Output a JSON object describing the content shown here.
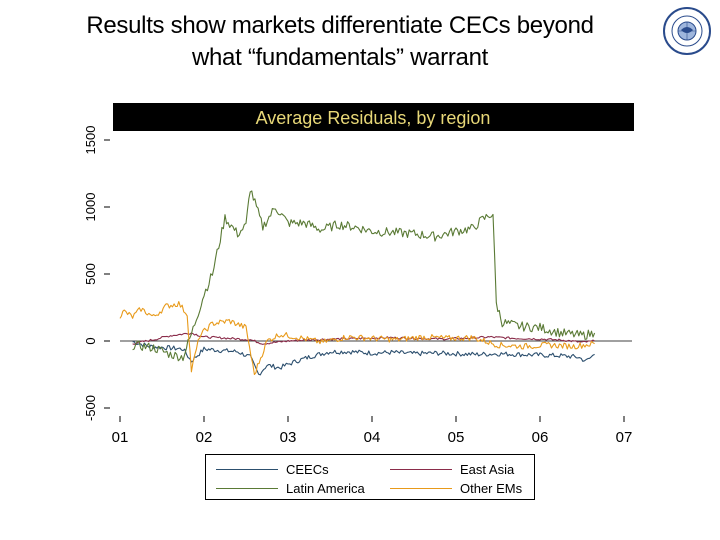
{
  "slide": {
    "title_line1": "Results show markets differentiate CECs beyond",
    "title_line2": "what “fundamentals” warrant"
  },
  "logo": {
    "name": "imf-seal",
    "text": "INTERNATIONAL MONETARY FUND"
  },
  "chart_data": {
    "type": "line",
    "title": "Average Residuals, by region",
    "xlabel": "",
    "ylabel": "",
    "x_ticks": [
      "01",
      "02",
      "03",
      "04",
      "05",
      "06",
      "07"
    ],
    "x_tick_values": [
      2001,
      2002,
      2003,
      2004,
      2005,
      2006,
      2007
    ],
    "xlim": [
      2001,
      2007
    ],
    "y_ticks": [
      "-500",
      "0",
      "500",
      "1000",
      "1500"
    ],
    "y_tick_values": [
      -500,
      0,
      500,
      1000,
      1500
    ],
    "ylim": [
      -500,
      1500
    ],
    "zero_line": 0,
    "colors": {
      "title_bg": "#000000",
      "title_text": "#e8d878",
      "ceecs": "#2c4f6e",
      "east_asia": "#8a2c4a",
      "latin_america": "#5a7a35",
      "other_ems": "#e89a1a",
      "axis": "#000000"
    },
    "series": [
      {
        "name": "CEECs",
        "key": "ceecs",
        "x": [
          2001.15,
          2001.35,
          2001.55,
          2001.75,
          2001.85,
          2002.0,
          2002.2,
          2002.4,
          2002.55,
          2002.65,
          2002.75,
          2002.9,
          2003.1,
          2003.3,
          2003.5,
          2003.75,
          2004.0,
          2004.25,
          2004.5,
          2004.75,
          2005.0,
          2005.25,
          2005.5,
          2005.75,
          2006.0,
          2006.25,
          2006.45,
          2006.55,
          2006.65
        ],
        "y": [
          -5,
          -40,
          -50,
          -60,
          -150,
          -60,
          -70,
          -80,
          -120,
          -250,
          -180,
          -200,
          -150,
          -110,
          -80,
          -80,
          -90,
          -85,
          -95,
          -90,
          -95,
          -100,
          -95,
          -100,
          -105,
          -110,
          -120,
          -150,
          -100
        ]
      },
      {
        "name": "East Asia",
        "key": "east_asia",
        "x": [
          2001.15,
          2001.4,
          2001.6,
          2001.85,
          2002.0,
          2002.3,
          2002.55,
          2002.7,
          2003.0,
          2003.3,
          2003.6,
          2003.9,
          2004.2,
          2004.5,
          2004.8,
          2005.1,
          2005.4,
          2005.7,
          2006.0,
          2006.3,
          2006.5,
          2006.65
        ],
        "y": [
          -20,
          10,
          40,
          60,
          30,
          20,
          10,
          -20,
          0,
          10,
          15,
          20,
          25,
          20,
          15,
          20,
          30,
          20,
          15,
          5,
          -10,
          0
        ]
      },
      {
        "name": "Latin America",
        "key": "latin_america",
        "x": [
          2001.15,
          2001.4,
          2001.6,
          2001.75,
          2001.85,
          2001.95,
          2002.0,
          2002.1,
          2002.25,
          2002.4,
          2002.5,
          2002.55,
          2002.7,
          2002.85,
          2003.0,
          2003.2,
          2003.4,
          2003.6,
          2003.8,
          2004.0,
          2004.25,
          2004.5,
          2004.75,
          2005.0,
          2005.2,
          2005.3,
          2005.4,
          2005.44,
          2005.48,
          2005.55,
          2005.75,
          2006.0,
          2006.25,
          2006.5,
          2006.65
        ],
        "y": [
          -30,
          -50,
          -100,
          -120,
          50,
          250,
          350,
          500,
          920,
          800,
          860,
          1140,
          850,
          1000,
          880,
          880,
          830,
          870,
          850,
          820,
          810,
          800,
          780,
          820,
          840,
          900,
          940,
          950,
          280,
          140,
          110,
          100,
          60,
          40,
          60
        ]
      },
      {
        "name": "Other EMs",
        "key": "other_ems",
        "x": [
          2001.0,
          2001.05,
          2001.15,
          2001.25,
          2001.4,
          2001.55,
          2001.7,
          2001.8,
          2001.85,
          2001.95,
          2002.1,
          2002.3,
          2002.5,
          2002.6,
          2002.75,
          2002.9,
          2003.1,
          2003.4,
          2003.7,
          2004.0,
          2004.3,
          2004.6,
          2004.9,
          2005.2,
          2005.5,
          2005.8,
          2006.1,
          2006.4,
          2006.65
        ],
        "y": [
          190,
          220,
          180,
          240,
          180,
          260,
          280,
          200,
          -220,
          40,
          130,
          150,
          100,
          -250,
          0,
          50,
          30,
          -10,
          30,
          20,
          10,
          30,
          20,
          25,
          -30,
          -40,
          -30,
          -40,
          -20
        ]
      }
    ]
  }
}
